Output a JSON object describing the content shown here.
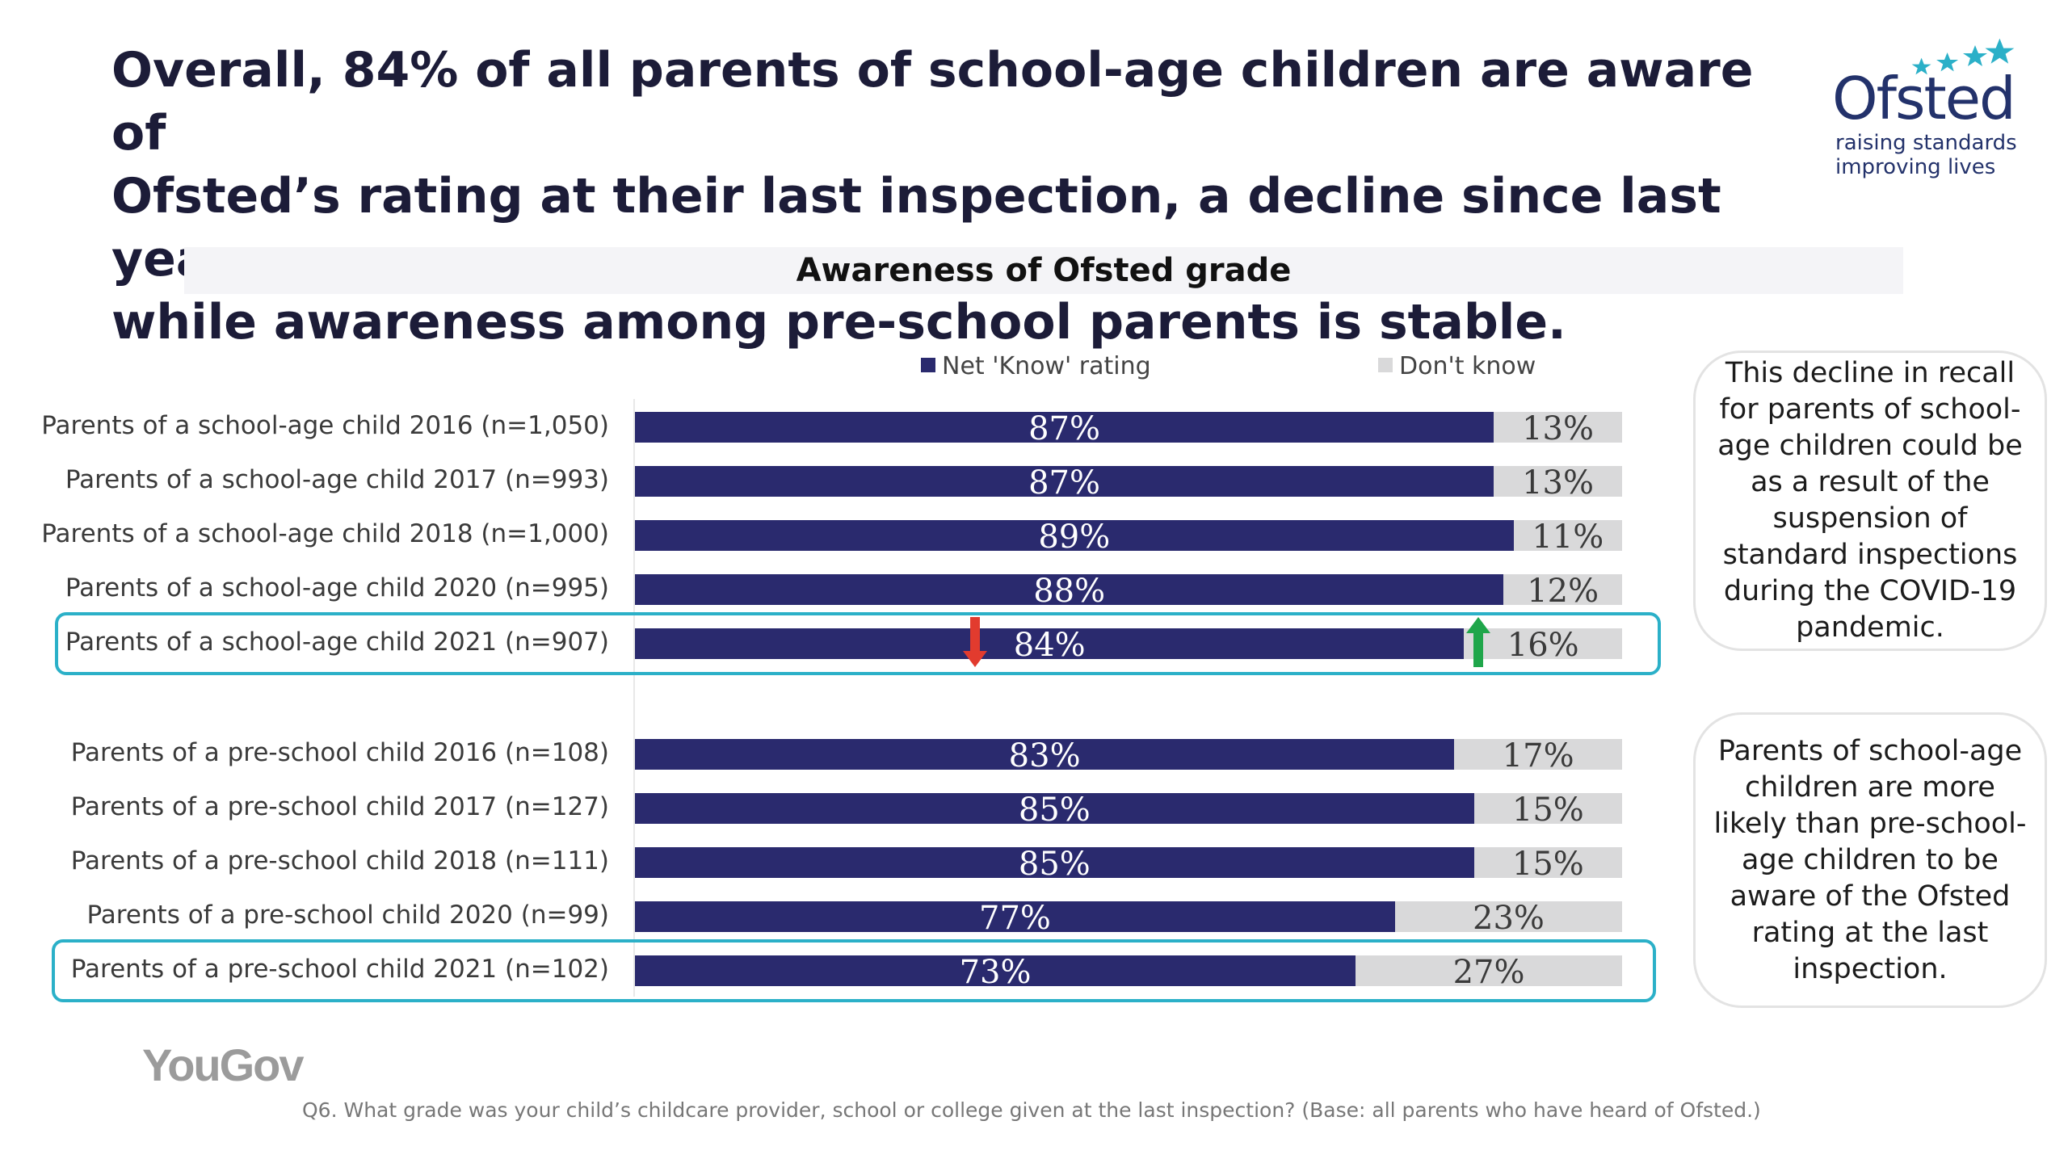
{
  "headline": {
    "line1": "Overall, 84% of all parents of school-age children are aware of",
    "line2": "Ofsted’s rating at their last inspection, a decline since last year,",
    "line3": "while awareness among pre-school parents is stable."
  },
  "logo": {
    "word": "Ofsted",
    "tagline1": "raising standards",
    "tagline2": "improving lives",
    "color": "#23326b",
    "star_color": "#2bb0c8"
  },
  "chart_data": {
    "type": "bar",
    "orientation": "horizontal",
    "stacked": true,
    "title": "Awareness of Ofsted grade",
    "legend_position": "top",
    "xlim": [
      0,
      100
    ],
    "categories": [
      "Parents of a school-age child 2016 (n=1,050)",
      "Parents of a school-age child 2017 (n=993)",
      "Parents of a school-age child 2018 (n=1,000)",
      "Parents of a school-age child 2020 (n=995)",
      "Parents of a school-age child 2021 (n=907)",
      "Parents of a pre-school child 2016 (n=108)",
      "Parents of a pre-school child 2017 (n=127)",
      "Parents of a pre-school child 2018 (n=111)",
      "Parents of a pre-school child 2020 (n=99)",
      "Parents of a pre-school child 2021 (n=102)"
    ],
    "series": [
      {
        "name": "Net 'Know' rating",
        "color": "#2a2a6e",
        "values": [
          87,
          87,
          89,
          88,
          84,
          83,
          85,
          85,
          77,
          73
        ],
        "labels": [
          "87%",
          "87%",
          "89%",
          "88%",
          "84%",
          "83%",
          "85%",
          "85%",
          "77%",
          "73%"
        ]
      },
      {
        "name": "Don't know",
        "color": "#d9d9da",
        "values": [
          13,
          13,
          11,
          12,
          16,
          17,
          15,
          15,
          23,
          27
        ],
        "labels": [
          "13%",
          "13%",
          "11%",
          "12%",
          "16%",
          "17%",
          "15%",
          "15%",
          "23%",
          "27%"
        ]
      }
    ],
    "highlighted_rows": [
      4,
      9
    ],
    "highlight_color": "#2bb0c8",
    "change_indicators": [
      {
        "row": 4,
        "series": "Net 'Know' rating",
        "direction": "down",
        "color": "#e23b2e"
      },
      {
        "row": 4,
        "series": "Don't know",
        "direction": "up",
        "color": "#1fa64a"
      }
    ]
  },
  "callouts": [
    "This decline in recall for parents of school-age children could be as a result of the suspension of standard inspections during the COVID-19 pandemic.",
    "Parents of school-age children are more likely than pre-school-age children to be aware of the Ofsted rating at the last inspection."
  ],
  "brand": "YouGov",
  "footnote": "Q6. What grade was your child’s childcare provider, school or college given at the last inspection? (Base: all parents who have heard of Ofsted.)"
}
